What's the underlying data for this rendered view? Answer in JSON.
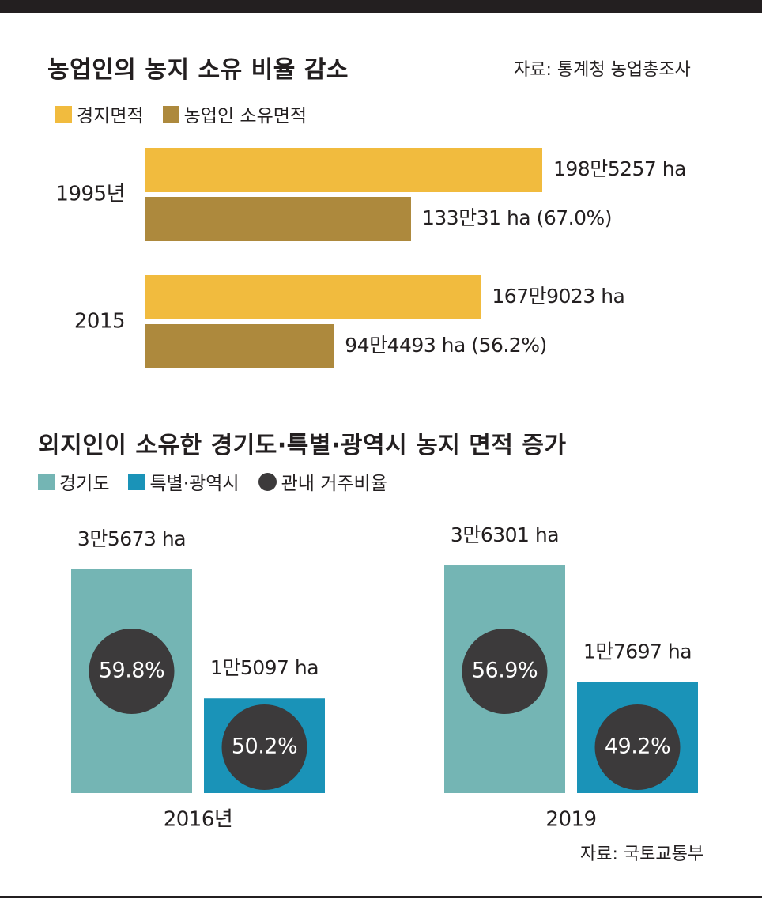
{
  "colors": {
    "cultivated": "#f1bb3e",
    "farmer_owned": "#ad893d",
    "gyeonggi": "#74b5b4",
    "metro": "#1a93b8",
    "resident_ratio": "#3c3a3b",
    "text": "#231f20"
  },
  "chart1": {
    "title": "농업인의 농지 소유 비율 감소",
    "source": "자료: 통계청 농업총조사",
    "legend": [
      "경지면적",
      "농업인 소유면적"
    ]
  },
  "chart2": {
    "title": "외지인이 소유한 경기도·특별·광역시 농지 면적 증가",
    "source": "자료: 국토교통부",
    "legend": [
      "경기도",
      "특별·광역시",
      "관내 거주비율"
    ]
  },
  "chart_data": [
    {
      "type": "bar",
      "orientation": "horizontal",
      "title": "농업인의 농지 소유 비율 감소",
      "unit": "ha",
      "categories": [
        "1995년",
        "2015"
      ],
      "series": [
        {
          "name": "경지면적",
          "values": [
            1985257,
            1679023
          ],
          "labels": [
            "198만5257 ha",
            "167만9023 ha"
          ]
        },
        {
          "name": "농업인 소유면적",
          "values": [
            1330031,
            944493
          ],
          "labels": [
            "133만31 ha (67.0%)",
            "94만4493 ha (56.2%)"
          ]
        }
      ]
    },
    {
      "type": "bar",
      "title": "외지인이 소유한 경기도·특별·광역시 농지 면적 증가",
      "unit": "ha",
      "categories": [
        "2016년",
        "2019"
      ],
      "series": [
        {
          "name": "경기도",
          "values": [
            35673,
            36301
          ],
          "labels": [
            "3만5673 ha",
            "3만6301 ha"
          ],
          "ratios": [
            "59.8%",
            "56.9%"
          ]
        },
        {
          "name": "특별·광역시",
          "values": [
            15097,
            17697
          ],
          "labels": [
            "1만5097 ha",
            "1만7697 ha"
          ],
          "ratios": [
            "50.2%",
            "49.2%"
          ]
        }
      ]
    }
  ]
}
